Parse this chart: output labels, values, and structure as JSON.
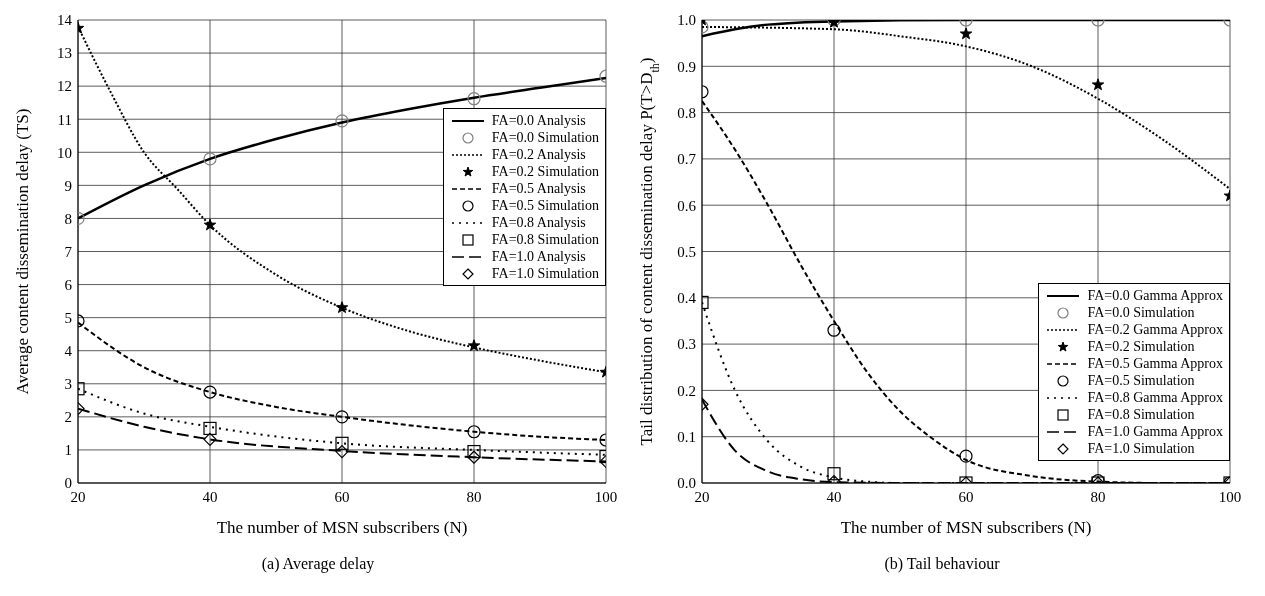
{
  "chart_data": [
    {
      "type": "line",
      "title": "(a) Average delay",
      "xlabel": "The number of MSN subscribers (N)",
      "ylabel": "Average content dissemination delay (TS)",
      "xlim": [
        20,
        100
      ],
      "xticks": [
        20,
        40,
        60,
        80,
        100
      ],
      "ylim": [
        0,
        14
      ],
      "yticks": [
        0,
        1,
        2,
        3,
        4,
        5,
        6,
        7,
        8,
        9,
        10,
        11,
        12,
        13,
        14
      ],
      "grid": true,
      "legend": "right",
      "series": [
        {
          "name": "FA=0.0 Analysis",
          "type": "line",
          "color": "#000000",
          "line_style": "solid",
          "marker": "none",
          "x": [
            20,
            30,
            40,
            50,
            60,
            70,
            80,
            90,
            100
          ],
          "values": [
            8.0,
            9.0,
            9.8,
            10.4,
            10.9,
            11.3,
            11.65,
            11.95,
            12.25
          ]
        },
        {
          "name": "FA=0.0 Simulation",
          "type": "scatter",
          "color": "#808080",
          "marker": "circle",
          "x": [
            20,
            40,
            60,
            80,
            100
          ],
          "values": [
            8.0,
            9.8,
            10.95,
            11.62,
            12.3
          ]
        },
        {
          "name": "FA=0.2 Analysis",
          "type": "line",
          "color": "#000000",
          "line_style": "dotted",
          "marker": "none",
          "x": [
            20,
            25,
            30,
            35,
            40,
            50,
            60,
            70,
            80,
            90,
            100
          ],
          "values": [
            13.8,
            11.8,
            10.0,
            8.9,
            7.8,
            6.3,
            5.3,
            4.6,
            4.1,
            3.7,
            3.35
          ]
        },
        {
          "name": "FA=0.2 Simulation",
          "type": "scatter",
          "color": "#000000",
          "marker": "star",
          "x": [
            20,
            40,
            60,
            80,
            100
          ],
          "values": [
            13.75,
            7.8,
            5.3,
            4.15,
            3.35
          ]
        },
        {
          "name": "FA=0.5 Analysis",
          "type": "line",
          "color": "#000000",
          "line_style": "dashed",
          "marker": "none",
          "x": [
            20,
            30,
            40,
            50,
            60,
            70,
            80,
            90,
            100
          ],
          "values": [
            4.85,
            3.5,
            2.75,
            2.3,
            2.0,
            1.75,
            1.55,
            1.4,
            1.3
          ]
        },
        {
          "name": "FA=0.5 Simulation",
          "type": "scatter",
          "color": "#000000",
          "marker": "circle",
          "x": [
            20,
            40,
            60,
            80,
            100
          ],
          "values": [
            4.9,
            2.75,
            2.0,
            1.55,
            1.3
          ]
        },
        {
          "name": "FA=0.8 Analysis",
          "type": "line",
          "color": "#000000",
          "line_style": "dotted",
          "marker": "none",
          "x": [
            20,
            30,
            40,
            60,
            80,
            100
          ],
          "values": [
            2.85,
            2.1,
            1.7,
            1.2,
            1.0,
            0.85
          ]
        },
        {
          "name": "FA=0.8 Simulation",
          "type": "scatter",
          "color": "#000000",
          "marker": "square",
          "x": [
            20,
            40,
            60,
            80,
            100
          ],
          "values": [
            2.85,
            1.65,
            1.2,
            0.95,
            0.8
          ]
        },
        {
          "name": "FA=1.0 Analysis",
          "type": "line",
          "color": "#000000",
          "line_style": "dashed",
          "marker": "none",
          "x": [
            20,
            30,
            40,
            60,
            80,
            100
          ],
          "values": [
            2.25,
            1.7,
            1.32,
            0.97,
            0.78,
            0.65
          ]
        },
        {
          "name": "FA=1.0 Simulation",
          "type": "scatter",
          "color": "#000000",
          "marker": "diamond",
          "x": [
            20,
            40,
            60,
            80,
            100
          ],
          "values": [
            2.25,
            1.32,
            0.95,
            0.78,
            0.65
          ]
        }
      ]
    },
    {
      "type": "line",
      "title": "(b) Tail behaviour",
      "xlabel": "The number of MSN subscribers (N)",
      "ylabel": "Tail distribution of content dissemination delay P(T>D$_{th}$)",
      "xlim": [
        20,
        100
      ],
      "xticks": [
        20,
        40,
        60,
        80,
        100
      ],
      "ylim": [
        0,
        1
      ],
      "yticks": [
        {
          "value": 0,
          "label": "0.0"
        },
        0.1,
        0.2,
        0.3,
        0.4,
        0.5,
        0.6,
        0.7,
        0.8,
        0.9,
        {
          "value": 1,
          "label": "1.0"
        }
      ],
      "grid": true,
      "legend": "bottom right",
      "series": [
        {
          "name": "FA=0.0 Gamma Approx",
          "type": "line",
          "color": "#000000",
          "line_style": "solid",
          "marker": "none",
          "x": [
            20,
            25,
            30,
            40,
            60,
            80,
            100
          ],
          "values": [
            0.965,
            0.98,
            0.99,
            0.997,
            1.0,
            1.0,
            1.0
          ]
        },
        {
          "name": "FA=0.0 Simulation",
          "type": "scatter",
          "color": "#808080",
          "marker": "circle",
          "x": [
            20,
            40,
            60,
            80,
            100
          ],
          "values": [
            0.985,
            1.0,
            1.0,
            1.0,
            1.0
          ]
        },
        {
          "name": "FA=0.2 Gamma Approx",
          "type": "line",
          "color": "#000000",
          "line_style": "dotted",
          "marker": "none",
          "x": [
            20,
            40,
            50,
            60,
            70,
            80,
            90,
            100
          ],
          "values": [
            0.985,
            0.98,
            0.965,
            0.943,
            0.9,
            0.83,
            0.74,
            0.635
          ]
        },
        {
          "name": "FA=0.2 Simulation",
          "type": "scatter",
          "color": "#000000",
          "marker": "star",
          "x": [
            20,
            40,
            60,
            80,
            100
          ],
          "values": [
            1.0,
            0.995,
            0.97,
            0.86,
            0.62
          ]
        },
        {
          "name": "FA=0.5 Gamma Approx",
          "type": "line",
          "color": "#000000",
          "line_style": "dashed",
          "marker": "none",
          "x": [
            20,
            25,
            30,
            35,
            40,
            45,
            50,
            55,
            60,
            70,
            80,
            90,
            100
          ],
          "values": [
            0.825,
            0.72,
            0.6,
            0.47,
            0.35,
            0.24,
            0.155,
            0.095,
            0.05,
            0.015,
            0.003,
            0,
            0
          ]
        },
        {
          "name": "FA=0.5 Simulation",
          "type": "scatter",
          "color": "#000000",
          "marker": "circle",
          "x": [
            20,
            40,
            60,
            80,
            100
          ],
          "values": [
            0.845,
            0.33,
            0.058,
            0.005,
            0
          ]
        },
        {
          "name": "FA=0.8 Gamma Approx",
          "type": "line",
          "color": "#000000",
          "line_style": "dotted",
          "marker": "none",
          "x": [
            20,
            25,
            30,
            35,
            40,
            45,
            50,
            100
          ],
          "values": [
            0.39,
            0.2,
            0.09,
            0.035,
            0.012,
            0.003,
            0,
            0
          ]
        },
        {
          "name": "FA=0.8 Simulation",
          "type": "scatter",
          "color": "#000000",
          "marker": "square",
          "x": [
            20,
            40,
            60,
            80,
            100
          ],
          "values": [
            0.39,
            0.02,
            0,
            0,
            0
          ]
        },
        {
          "name": "FA=1.0 Gamma Approx",
          "type": "line",
          "color": "#000000",
          "line_style": "dashed",
          "marker": "none",
          "x": [
            20,
            25,
            30,
            35,
            40,
            50,
            100
          ],
          "values": [
            0.18,
            0.07,
            0.025,
            0.008,
            0.002,
            0,
            0
          ]
        },
        {
          "name": "FA=1.0 Simulation",
          "type": "scatter",
          "color": "#000000",
          "marker": "diamond",
          "x": [
            20,
            40,
            60,
            80,
            100
          ],
          "values": [
            0.17,
            0.003,
            0,
            0,
            0
          ]
        }
      ]
    }
  ]
}
